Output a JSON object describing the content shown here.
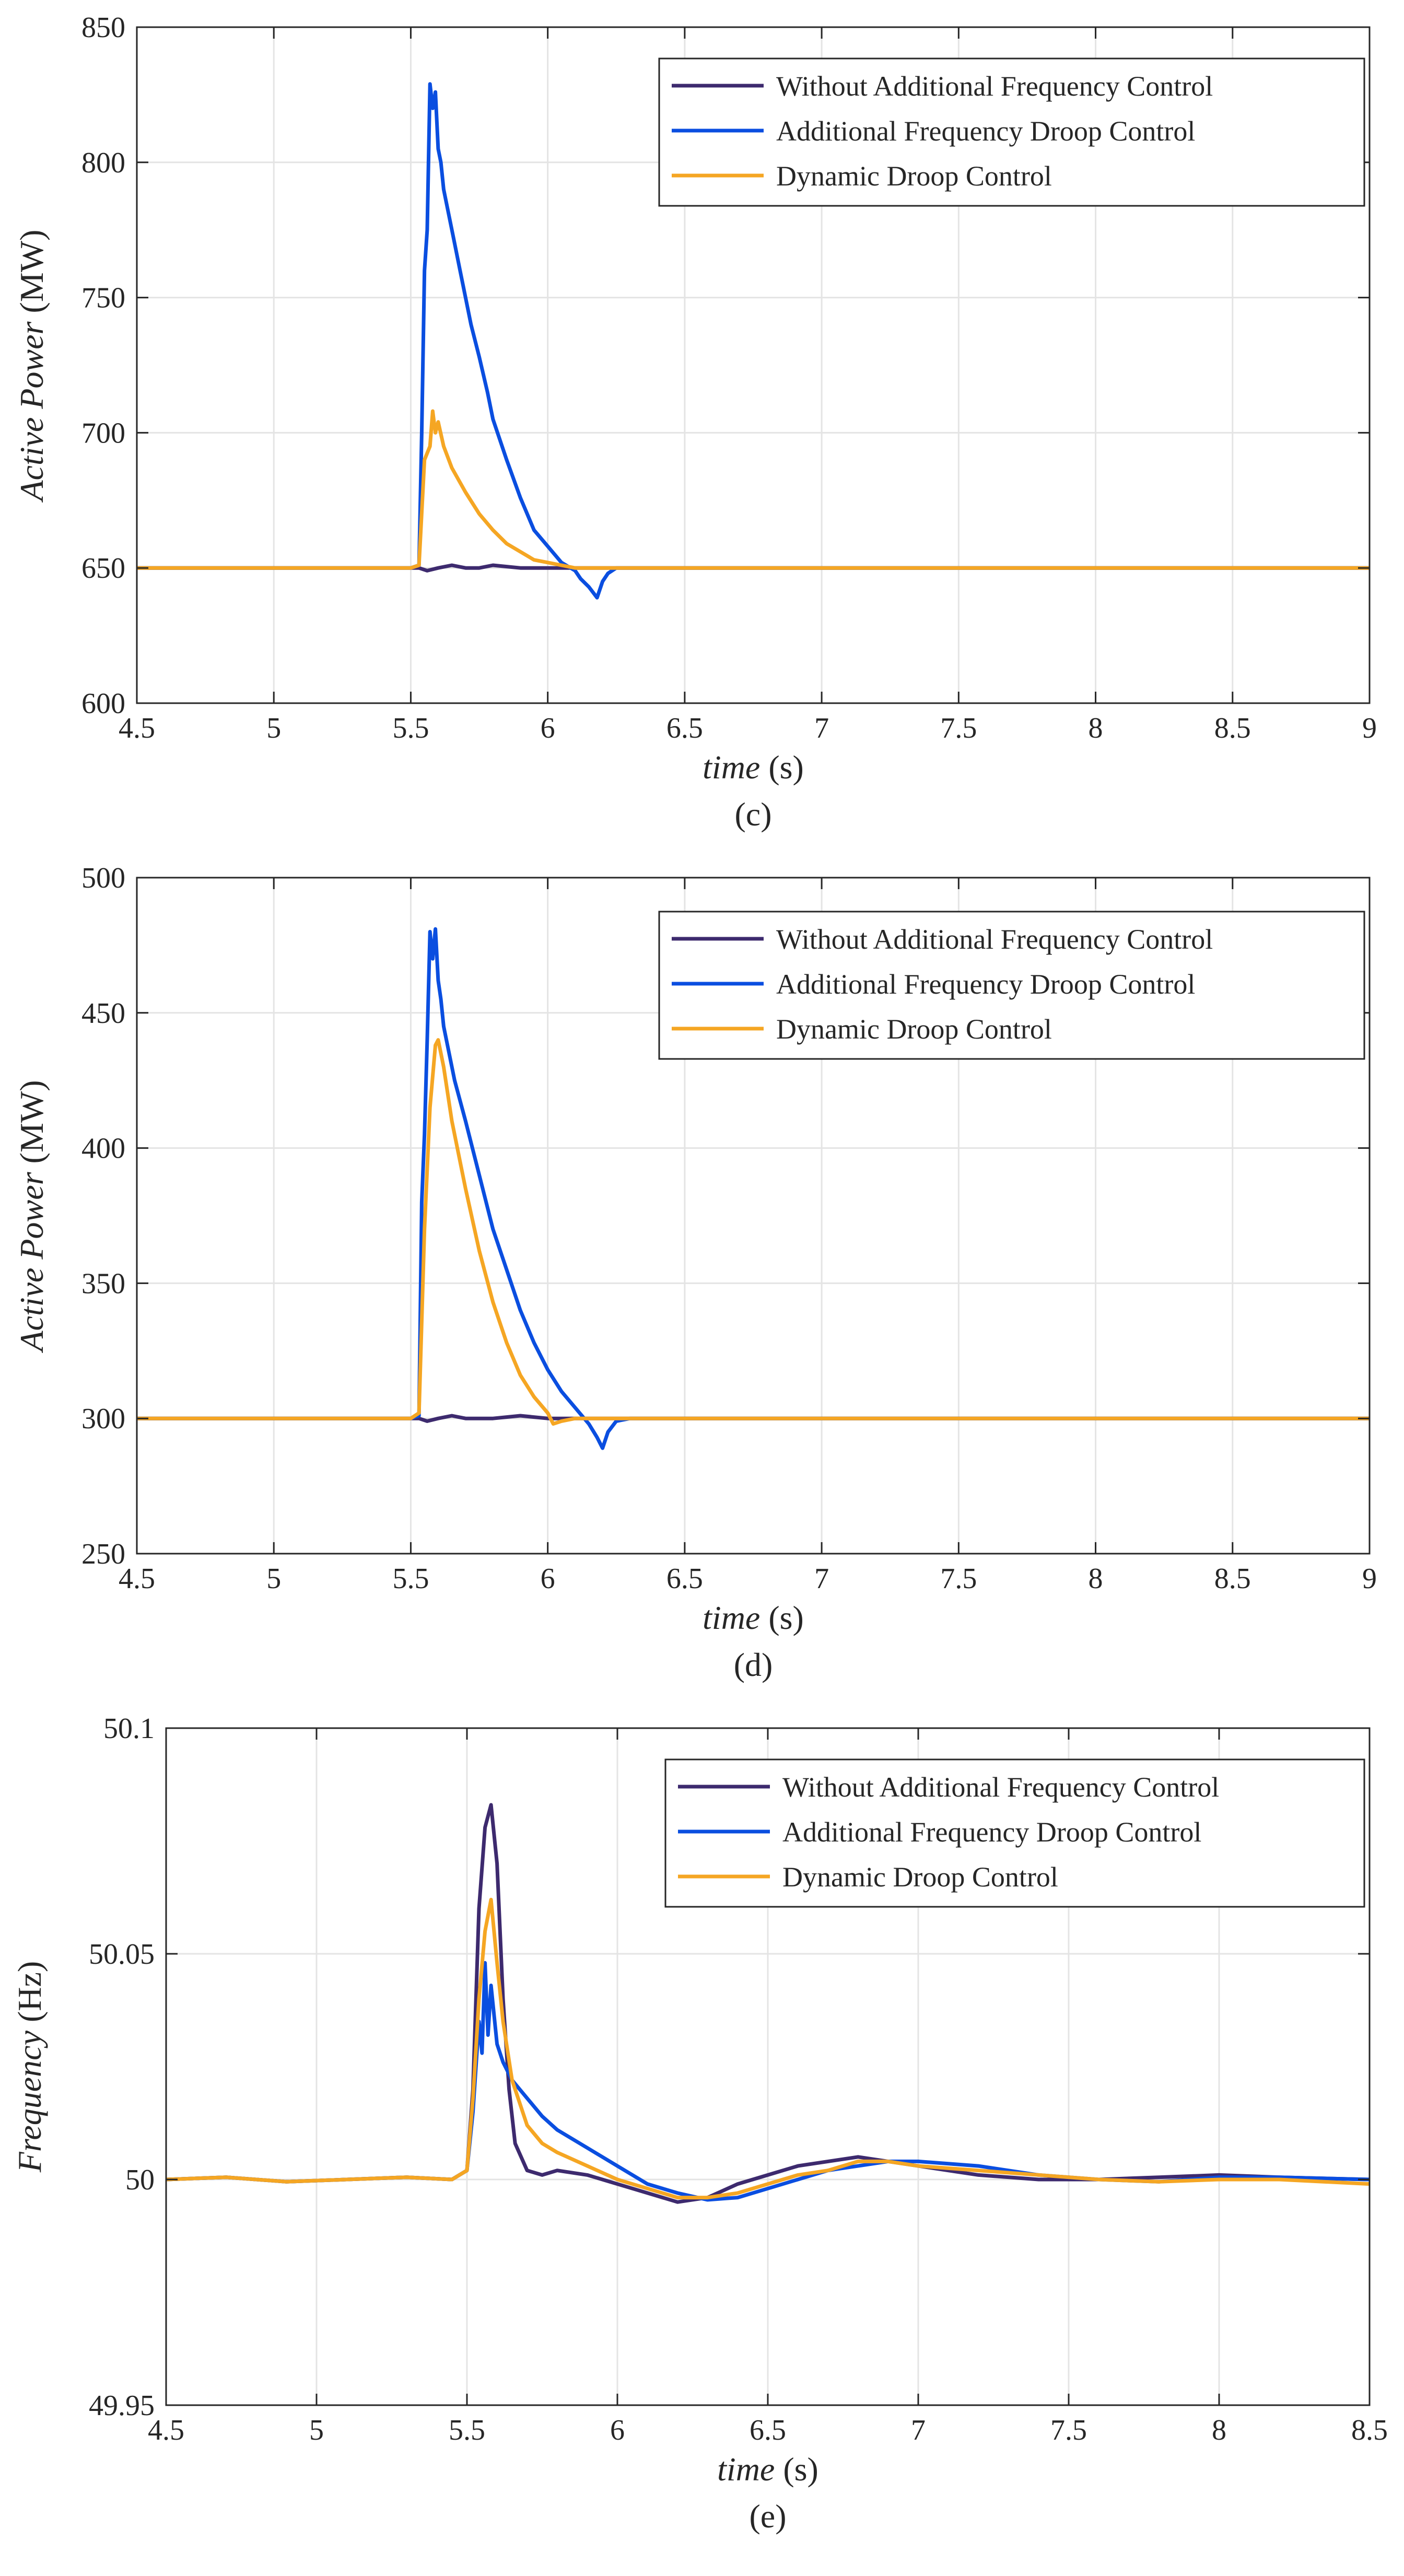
{
  "chart_data": [
    {
      "type": "line",
      "caption": "(c)",
      "xlabel": "time",
      "xlabel_unit": "(s)",
      "ylabel": "Active Power",
      "ylabel_unit": "(MW)",
      "xlim": [
        4.5,
        9
      ],
      "ylim": [
        600,
        850
      ],
      "xticks": [
        4.5,
        5,
        5.5,
        6,
        6.5,
        7,
        7.5,
        8,
        8.5,
        9
      ],
      "xtick_labels": [
        "4.5",
        "5",
        "5.5",
        "6",
        "6.5",
        "7",
        "7.5",
        "8",
        "8.5",
        "9"
      ],
      "yticks": [
        600,
        650,
        700,
        750,
        800,
        850
      ],
      "ytick_labels": [
        "600",
        "650",
        "700",
        "750",
        "800",
        "850"
      ],
      "grid": true,
      "legend_position": "top-right",
      "series": [
        {
          "name": "Without Additional Frequency Control",
          "color": "#3d2a6e",
          "x": [
            4.5,
            5.5,
            5.53,
            5.56,
            5.6,
            5.65,
            5.7,
            5.75,
            5.8,
            5.9,
            6.0,
            6.5,
            7.0,
            8.0,
            9.0
          ],
          "y": [
            650,
            650,
            650,
            649,
            650,
            651,
            650,
            650,
            651,
            650,
            650,
            650,
            650,
            650,
            650
          ]
        },
        {
          "name": "Additional Frequency Droop Control",
          "color": "#0a4ee0",
          "x": [
            4.5,
            5.5,
            5.53,
            5.54,
            5.55,
            5.56,
            5.57,
            5.58,
            5.59,
            5.6,
            5.61,
            5.62,
            5.64,
            5.66,
            5.68,
            5.7,
            5.72,
            5.75,
            5.78,
            5.8,
            5.85,
            5.9,
            5.95,
            6.0,
            6.05,
            6.1,
            6.12,
            6.15,
            6.18,
            6.2,
            6.22,
            6.25,
            6.3,
            6.5,
            7.0,
            8.0,
            9.0
          ],
          "y": [
            650,
            650,
            651,
            700,
            760,
            775,
            829,
            820,
            826,
            805,
            800,
            790,
            780,
            770,
            760,
            750,
            740,
            728,
            715,
            705,
            690,
            676,
            664,
            658,
            652,
            649,
            646,
            643,
            639,
            645,
            648,
            650,
            650,
            650,
            650,
            650,
            650
          ]
        },
        {
          "name": "Dynamic Droop Control",
          "color": "#f5a623",
          "x": [
            4.5,
            5.5,
            5.53,
            5.55,
            5.57,
            5.58,
            5.59,
            5.6,
            5.62,
            5.65,
            5.7,
            5.75,
            5.8,
            5.85,
            5.9,
            5.95,
            6.0,
            6.05,
            6.1,
            6.5,
            7.0,
            8.0,
            9.0
          ],
          "y": [
            650,
            650,
            651,
            690,
            695,
            708,
            700,
            704,
            695,
            687,
            678,
            670,
            664,
            659,
            656,
            653,
            652,
            651,
            650,
            650,
            650,
            650,
            650
          ]
        }
      ]
    },
    {
      "type": "line",
      "caption": "(d)",
      "xlabel": "time",
      "xlabel_unit": "(s)",
      "ylabel": "Active Power",
      "ylabel_unit": "(MW)",
      "xlim": [
        4.5,
        9
      ],
      "ylim": [
        250,
        500
      ],
      "xticks": [
        4.5,
        5,
        5.5,
        6,
        6.5,
        7,
        7.5,
        8,
        8.5,
        9
      ],
      "xtick_labels": [
        "4.5",
        "5",
        "5.5",
        "6",
        "6.5",
        "7",
        "7.5",
        "8",
        "8.5",
        "9"
      ],
      "yticks": [
        250,
        300,
        350,
        400,
        450,
        500
      ],
      "ytick_labels": [
        "250",
        "300",
        "350",
        "400",
        "450",
        "500"
      ],
      "grid": true,
      "legend_position": "top-right",
      "series": [
        {
          "name": "Without Additional Frequency Control",
          "color": "#3d2a6e",
          "x": [
            4.5,
            5.5,
            5.53,
            5.56,
            5.6,
            5.65,
            5.7,
            5.8,
            5.9,
            6.0,
            6.5,
            7.0,
            8.0,
            9.0
          ],
          "y": [
            300,
            300,
            300,
            299,
            300,
            301,
            300,
            300,
            301,
            300,
            300,
            300,
            300,
            300
          ]
        },
        {
          "name": "Additional Frequency Droop Control",
          "color": "#0a4ee0",
          "x": [
            4.5,
            5.5,
            5.53,
            5.54,
            5.55,
            5.56,
            5.57,
            5.58,
            5.59,
            5.6,
            5.61,
            5.62,
            5.64,
            5.66,
            5.7,
            5.75,
            5.8,
            5.85,
            5.9,
            5.95,
            6.0,
            6.05,
            6.1,
            6.15,
            6.18,
            6.2,
            6.22,
            6.25,
            6.3,
            6.5,
            7.0,
            8.0,
            9.0
          ],
          "y": [
            300,
            300,
            301,
            380,
            405,
            440,
            480,
            470,
            481,
            462,
            455,
            445,
            435,
            425,
            410,
            390,
            370,
            355,
            340,
            328,
            318,
            310,
            304,
            298,
            293,
            289,
            295,
            299,
            300,
            300,
            300,
            300,
            300
          ]
        },
        {
          "name": "Dynamic Droop Control",
          "color": "#f5a623",
          "x": [
            4.5,
            5.5,
            5.53,
            5.55,
            5.57,
            5.59,
            5.6,
            5.62,
            5.65,
            5.7,
            5.75,
            5.8,
            5.85,
            5.9,
            5.95,
            6.0,
            6.02,
            6.05,
            6.1,
            6.5,
            7.0,
            8.0,
            9.0
          ],
          "y": [
            300,
            300,
            302,
            370,
            415,
            438,
            440,
            430,
            410,
            385,
            362,
            343,
            328,
            316,
            308,
            302,
            298,
            299,
            300,
            300,
            300,
            300,
            300
          ]
        }
      ]
    },
    {
      "type": "line",
      "caption": "(e)",
      "xlabel": "time",
      "xlabel_unit": "(s)",
      "ylabel": "Frequency",
      "ylabel_unit": "(Hz)",
      "xlim": [
        4.5,
        8.5
      ],
      "ylim": [
        49.95,
        50.1
      ],
      "xticks": [
        4.5,
        5,
        5.5,
        6,
        6.5,
        7,
        7.5,
        8,
        8.5
      ],
      "xtick_labels": [
        "4.5",
        "5",
        "5.5",
        "6",
        "6.5",
        "7",
        "7.5",
        "8",
        "8.5"
      ],
      "yticks": [
        49.95,
        50,
        50.05,
        50.1
      ],
      "ytick_labels": [
        "49.95",
        "50",
        "50.05",
        "50.1"
      ],
      "grid": true,
      "legend_position": "top-right",
      "series": [
        {
          "name": "Without Additional Frequency Control",
          "color": "#3d2a6e",
          "x": [
            4.5,
            4.7,
            4.9,
            5.1,
            5.3,
            5.45,
            5.5,
            5.52,
            5.54,
            5.56,
            5.58,
            5.6,
            5.62,
            5.64,
            5.66,
            5.7,
            5.75,
            5.8,
            5.9,
            6.0,
            6.1,
            6.2,
            6.3,
            6.4,
            6.5,
            6.6,
            6.7,
            6.8,
            6.9,
            7.0,
            7.2,
            7.4,
            7.6,
            7.8,
            8.0,
            8.2,
            8.5
          ],
          "y": [
            50.0,
            50.0005,
            49.9995,
            50.0,
            50.0005,
            50.0,
            50.002,
            50.02,
            50.06,
            50.078,
            50.083,
            50.07,
            50.04,
            50.02,
            50.008,
            50.002,
            50.001,
            50.002,
            50.001,
            49.999,
            49.997,
            49.995,
            49.996,
            49.999,
            50.001,
            50.003,
            50.004,
            50.005,
            50.004,
            50.003,
            50.001,
            50.0,
            50.0,
            50.0005,
            50.001,
            50.0005,
            50.0
          ]
        },
        {
          "name": "Additional Frequency Droop Control",
          "color": "#0a4ee0",
          "x": [
            4.5,
            4.7,
            4.9,
            5.1,
            5.3,
            5.45,
            5.5,
            5.52,
            5.54,
            5.55,
            5.56,
            5.57,
            5.58,
            5.6,
            5.62,
            5.65,
            5.7,
            5.75,
            5.8,
            5.9,
            6.0,
            6.1,
            6.2,
            6.3,
            6.4,
            6.5,
            6.6,
            6.7,
            6.8,
            6.9,
            7.0,
            7.2,
            7.4,
            7.6,
            7.8,
            8.0,
            8.2,
            8.5
          ],
          "y": [
            50.0,
            50.0005,
            49.9995,
            50.0,
            50.0005,
            50.0,
            50.002,
            50.015,
            50.035,
            50.028,
            50.048,
            50.032,
            50.043,
            50.03,
            50.026,
            50.022,
            50.018,
            50.014,
            50.011,
            50.007,
            50.003,
            49.999,
            49.997,
            49.9955,
            49.996,
            49.998,
            50.0,
            50.002,
            50.003,
            50.004,
            50.004,
            50.003,
            50.001,
            50.0,
            49.9995,
            50.0005,
            50.0005,
            50.0
          ]
        },
        {
          "name": "Dynamic Droop Control",
          "color": "#f5a623",
          "x": [
            4.5,
            4.7,
            4.9,
            5.1,
            5.3,
            5.45,
            5.5,
            5.52,
            5.54,
            5.56,
            5.58,
            5.6,
            5.62,
            5.65,
            5.7,
            5.75,
            5.8,
            5.9,
            6.0,
            6.1,
            6.2,
            6.3,
            6.4,
            6.5,
            6.6,
            6.7,
            6.8,
            6.9,
            7.0,
            7.2,
            7.4,
            7.6,
            7.8,
            8.0,
            8.2,
            8.5
          ],
          "y": [
            50.0,
            50.0005,
            49.9995,
            50.0,
            50.0005,
            50.0,
            50.002,
            50.018,
            50.04,
            50.055,
            50.062,
            50.048,
            50.035,
            50.022,
            50.012,
            50.008,
            50.006,
            50.003,
            50.0,
            49.998,
            49.996,
            49.996,
            49.997,
            49.999,
            50.001,
            50.002,
            50.004,
            50.004,
            50.003,
            50.002,
            50.001,
            50.0,
            49.9995,
            50.0,
            50.0,
            49.999
          ]
        }
      ]
    }
  ]
}
